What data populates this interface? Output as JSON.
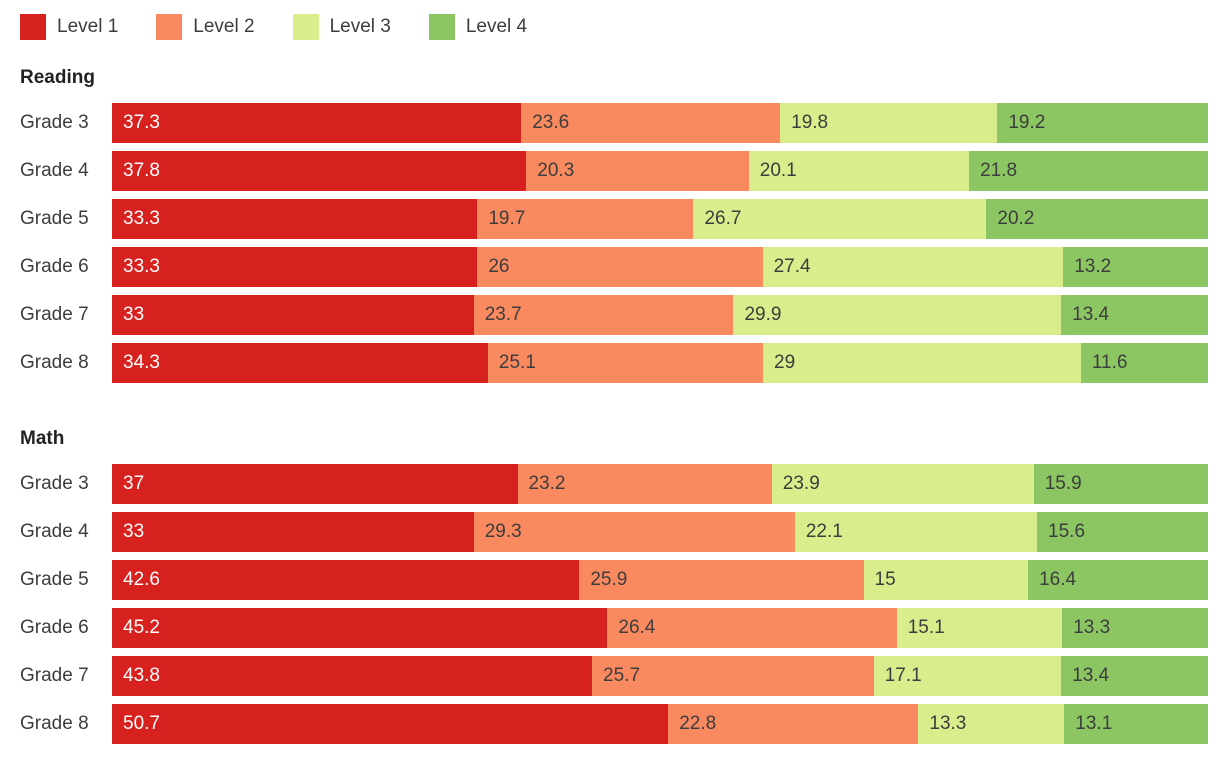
{
  "legend": {
    "items": [
      {
        "label": "Level 1",
        "color": "#d7211e",
        "text_color": "#ffffff"
      },
      {
        "label": "Level 2",
        "color": "#f98a5f",
        "text_color": "#3d3d3d"
      },
      {
        "label": "Level 3",
        "color": "#d9ed8c",
        "text_color": "#3d3d3d"
      },
      {
        "label": "Level 4",
        "color": "#8cc663",
        "text_color": "#3d3d3d"
      }
    ]
  },
  "chart_data": {
    "type": "bar",
    "orientation": "horizontal",
    "stacked": true,
    "normalized": true,
    "unit": "percent",
    "x_range": [
      0,
      100
    ],
    "grid": false,
    "legend_position": "top",
    "series_names": [
      "Level 1",
      "Level 2",
      "Level 3",
      "Level 4"
    ],
    "sections": [
      {
        "title": "Reading",
        "categories": [
          "Grade 3",
          "Grade 4",
          "Grade 5",
          "Grade 6",
          "Grade 7",
          "Grade 8"
        ],
        "rows": [
          {
            "category": "Grade 3",
            "values": [
              37.3,
              23.6,
              19.8,
              19.2
            ]
          },
          {
            "category": "Grade 4",
            "values": [
              37.8,
              20.3,
              20.1,
              21.8
            ]
          },
          {
            "category": "Grade 5",
            "values": [
              33.3,
              19.7,
              26.7,
              20.2
            ]
          },
          {
            "category": "Grade 6",
            "values": [
              33.3,
              26,
              27.4,
              13.2
            ]
          },
          {
            "category": "Grade 7",
            "values": [
              33,
              23.7,
              29.9,
              13.4
            ]
          },
          {
            "category": "Grade 8",
            "values": [
              34.3,
              25.1,
              29,
              11.6
            ]
          }
        ]
      },
      {
        "title": "Math",
        "categories": [
          "Grade 3",
          "Grade 4",
          "Grade 5",
          "Grade 6",
          "Grade 7",
          "Grade 8"
        ],
        "rows": [
          {
            "category": "Grade 3",
            "values": [
              37,
              23.2,
              23.9,
              15.9
            ]
          },
          {
            "category": "Grade 4",
            "values": [
              33,
              29.3,
              22.1,
              15.6
            ]
          },
          {
            "category": "Grade 5",
            "values": [
              42.6,
              25.9,
              15,
              16.4
            ]
          },
          {
            "category": "Grade 6",
            "values": [
              45.2,
              26.4,
              15.1,
              13.3
            ]
          },
          {
            "category": "Grade 7",
            "values": [
              43.8,
              25.7,
              17.1,
              13.4
            ]
          },
          {
            "category": "Grade 8",
            "values": [
              50.7,
              22.8,
              13.3,
              13.1
            ]
          }
        ]
      }
    ]
  }
}
